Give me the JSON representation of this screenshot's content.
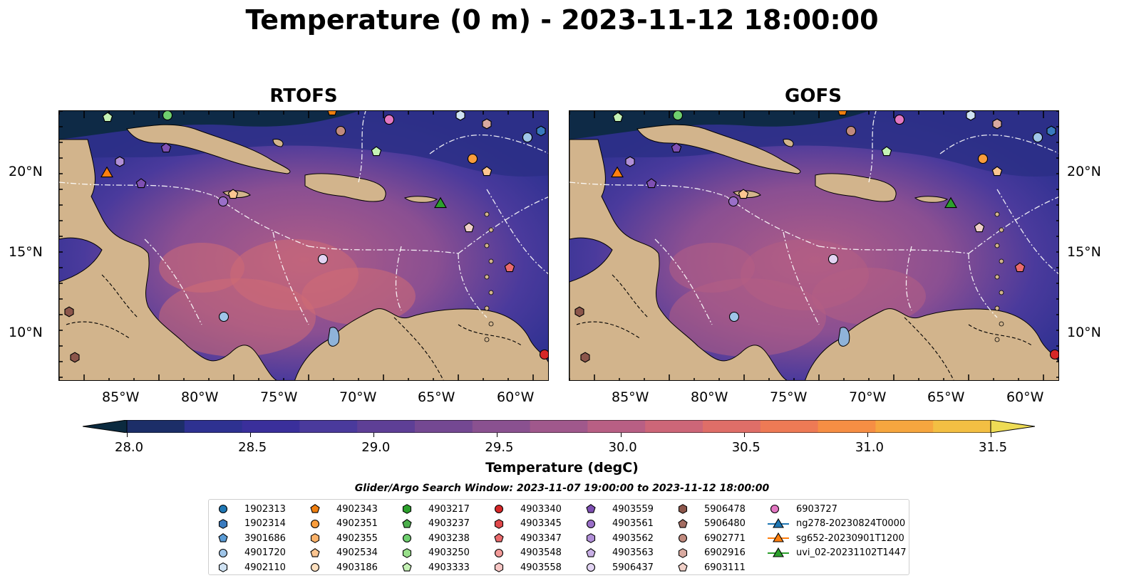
{
  "title": "Temperature (0 m) - 2023-11-12 18:00:00",
  "panels": [
    {
      "title": "RTOFS"
    },
    {
      "title": "GOFS"
    }
  ],
  "x_ticks": [
    "85°W",
    "80°W",
    "75°W",
    "70°W",
    "65°W",
    "60°W"
  ],
  "y_ticks": [
    "20°N",
    "15°N",
    "10°N"
  ],
  "colorbar": {
    "label": "Temperature (degC)",
    "ticks": [
      "28.0",
      "28.5",
      "29.0",
      "29.5",
      "30.0",
      "30.5",
      "31.0",
      "31.5"
    ],
    "min": 28.0,
    "max": 31.5,
    "colors": [
      "#0b2a3f",
      "#1c2e68",
      "#2e3191",
      "#3a2f9b",
      "#4a3a9c",
      "#5e3f96",
      "#744892",
      "#8a5190",
      "#a0588c",
      "#b85f84",
      "#cd6678",
      "#df6e68",
      "#ee7a55",
      "#f68e44",
      "#f6a63f",
      "#f3bf43",
      "#eedc55"
    ]
  },
  "search_window": "Glider/Argo Search Window: 2023-11-07 19:00:00 to 2023-11-12 18:00:00",
  "legend": {
    "columns": [
      [
        {
          "label": "1902313",
          "marker": "circle",
          "color": "#1f77b4"
        },
        {
          "label": "1902314",
          "marker": "hexagon",
          "color": "#3a7bbf"
        },
        {
          "label": "3901686",
          "marker": "pentagon",
          "color": "#5a9bd5"
        },
        {
          "label": "4901720",
          "marker": "circle",
          "color": "#9fc5e8"
        },
        {
          "label": "4902110",
          "marker": "hexagon",
          "color": "#cfe2f3"
        }
      ],
      [
        {
          "label": "4902343",
          "marker": "pentagon",
          "color": "#f07f10"
        },
        {
          "label": "4902351",
          "marker": "circle",
          "color": "#f99d3c"
        },
        {
          "label": "4902355",
          "marker": "hexagon",
          "color": "#fbb26a"
        },
        {
          "label": "4902534",
          "marker": "pentagon",
          "color": "#fcc590"
        },
        {
          "label": "4903186",
          "marker": "circle",
          "color": "#fde0c0"
        }
      ],
      [
        {
          "label": "4903217",
          "marker": "hexagon",
          "color": "#2ca02c"
        },
        {
          "label": "4903237",
          "marker": "pentagon",
          "color": "#4caf4c"
        },
        {
          "label": "4903238",
          "marker": "circle",
          "color": "#6fcf6f"
        },
        {
          "label": "4903250",
          "marker": "hexagon",
          "color": "#98df8a"
        },
        {
          "label": "4903333",
          "marker": "pentagon",
          "color": "#c5f2b5"
        }
      ],
      [
        {
          "label": "4903340",
          "marker": "circle",
          "color": "#d62728"
        },
        {
          "label": "4903345",
          "marker": "hexagon",
          "color": "#e0474a"
        },
        {
          "label": "4903347",
          "marker": "pentagon",
          "color": "#ea6a6c"
        },
        {
          "label": "4903548",
          "marker": "circle",
          "color": "#f29a98"
        },
        {
          "label": "4903558",
          "marker": "hexagon",
          "color": "#f7c6c4"
        }
      ],
      [
        {
          "label": "4903559",
          "marker": "pentagon",
          "color": "#7e4fb3"
        },
        {
          "label": "4903561",
          "marker": "circle",
          "color": "#9a6fc8"
        },
        {
          "label": "4903562",
          "marker": "hexagon",
          "color": "#b18fd8"
        },
        {
          "label": "4903563",
          "marker": "pentagon",
          "color": "#c9b0e6"
        },
        {
          "label": "5906437",
          "marker": "circle",
          "color": "#e2d4f3"
        }
      ],
      [
        {
          "label": "5906478",
          "marker": "hexagon",
          "color": "#8c564b"
        },
        {
          "label": "5906480",
          "marker": "pentagon",
          "color": "#a46d62"
        },
        {
          "label": "6902771",
          "marker": "circle",
          "color": "#c08a7e"
        },
        {
          "label": "6902916",
          "marker": "hexagon",
          "color": "#d9aaa0"
        },
        {
          "label": "6903111",
          "marker": "pentagon",
          "color": "#f0d0c8"
        }
      ],
      [
        {
          "label": "6903727",
          "marker": "circle",
          "color": "#e377c2"
        },
        {
          "label": "ng278-20230824T0000",
          "marker": "triangle",
          "color": "#1f77b4"
        },
        {
          "label": "sg652-20230901T1200",
          "marker": "triangle",
          "color": "#ff7f0e"
        },
        {
          "label": "uvi_02-20231102T1447",
          "marker": "triangle",
          "color": "#2ca02c"
        }
      ]
    ]
  },
  "colors": {
    "land": "#d2b48c",
    "ocean_deep": "#0b2a3f",
    "lake": "#8fb3d9"
  }
}
